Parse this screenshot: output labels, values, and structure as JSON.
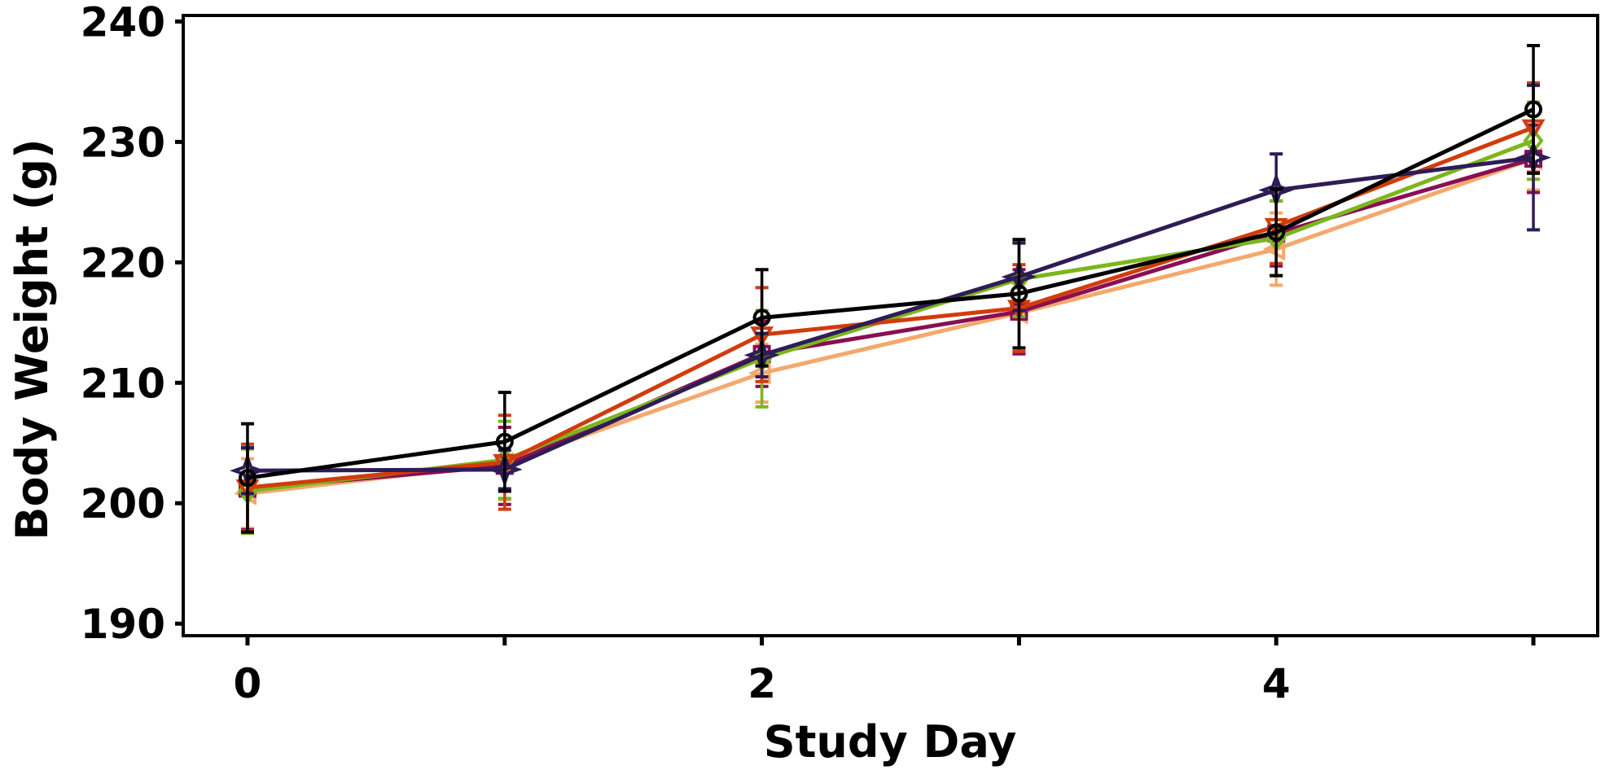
{
  "chart_data": {
    "type": "line",
    "xlabel": "Study Day",
    "ylabel": "Body Weight (g)",
    "xlim": [
      -0.25,
      5.25
    ],
    "ylim": [
      189,
      240.5
    ],
    "xticks": [
      0,
      1,
      2,
      3,
      4,
      5
    ],
    "xtick_labels": [
      "0",
      "",
      "2",
      "",
      "4",
      ""
    ],
    "yticks": [
      190,
      200,
      210,
      220,
      230,
      240
    ],
    "ytick_labels": [
      "190",
      "200",
      "210",
      "220",
      "230",
      "240"
    ],
    "grid": false,
    "legend": "none",
    "x": [
      0,
      1,
      2,
      3,
      4,
      5
    ],
    "series": [
      {
        "color": "#f4a86c",
        "marker": "triangle-left",
        "values": [
          200.8,
          203.3,
          210.8,
          215.8,
          221.1,
          228.6
        ],
        "errors": [
          2.9,
          3.0,
          2.4,
          3.2,
          3.0,
          2.6
        ]
      },
      {
        "color": "#8a0e52",
        "marker": "square",
        "values": [
          201.2,
          203.1,
          212.4,
          215.9,
          222.4,
          228.6
        ],
        "errors": [
          3.4,
          3.2,
          2.7,
          3.5,
          2.7,
          2.8
        ]
      },
      {
        "color": "#7cb61c",
        "marker": "diamond",
        "values": [
          201.0,
          203.6,
          212.0,
          218.6,
          222.0,
          230.1
        ],
        "errors": [
          3.5,
          3.2,
          4.0,
          3.1,
          3.1,
          3.2
        ]
      },
      {
        "color": "#d13c0c",
        "marker": "triangle-down",
        "values": [
          201.3,
          203.4,
          214.0,
          216.2,
          223.0,
          231.2
        ],
        "errors": [
          3.6,
          3.9,
          3.9,
          3.6,
          3.1,
          3.7
        ]
      },
      {
        "color": "#2e1c57",
        "marker": "star",
        "values": [
          202.7,
          202.8,
          212.3,
          218.8,
          226.0,
          228.7
        ],
        "errors": [
          1.9,
          1.6,
          1.8,
          2.8,
          3.0,
          6.0
        ]
      },
      {
        "color": "#000000",
        "marker": "circle",
        "values": [
          202.1,
          205.1,
          215.4,
          217.4,
          222.5,
          232.7
        ],
        "errors": [
          4.5,
          4.1,
          4.0,
          4.5,
          3.6,
          5.3
        ]
      }
    ]
  }
}
